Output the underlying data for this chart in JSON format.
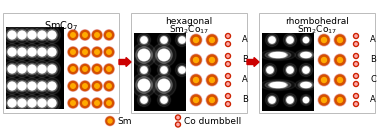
{
  "panel_titles": [
    "SmCo$_7$",
    "hexagonal\nSm$_2$Co$_{17}$",
    "rhombohedral\nSm$_2$Co$_{17}$"
  ],
  "arrow_color": "#cc0000",
  "bg_color": "#ffffff",
  "sm_outer": "#d45000",
  "sm_inner": "#ffaa00",
  "sm_pink": "#e08080",
  "co_red": "#cc2200",
  "legend_sm_label": "Sm",
  "legend_co_label": "Co dumbbell",
  "panel_labels_hex": [
    "A",
    "B",
    "A",
    "B"
  ],
  "panel_labels_rhombo": [
    "A",
    "B",
    "C",
    "A"
  ],
  "figsize": [
    3.78,
    1.29
  ],
  "dpi": 100
}
